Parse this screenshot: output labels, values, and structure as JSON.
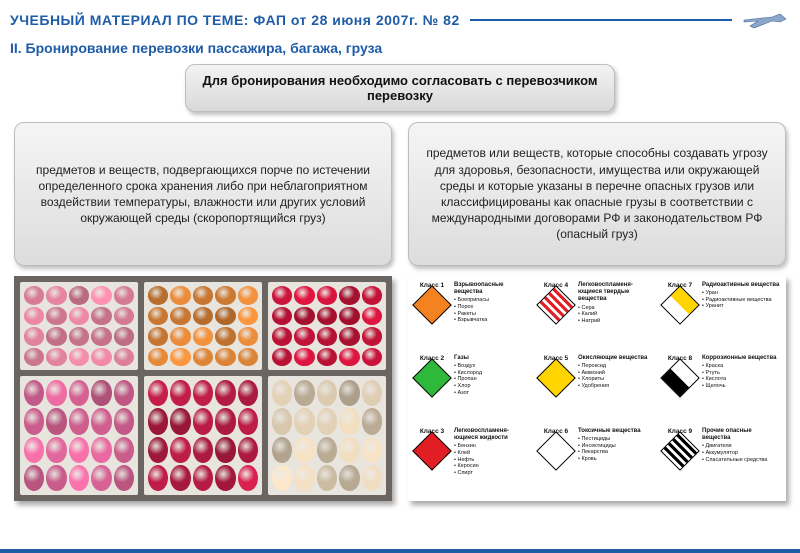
{
  "colors": {
    "accent": "#1f5ca8",
    "card_bg_top": "#f5f5f5",
    "card_bg_bottom": "#dcdcdc",
    "card_border": "#bcbcbc",
    "shadow": "rgba(0,0,0,0.25)"
  },
  "header": {
    "title": "УЧЕБНЫЙ МАТЕРИАЛ ПО ТЕМЕ: ФАП от 28 июня 2007г. № 82"
  },
  "subtitle": "II. Бронирование перевозки пассажира, багажа, груза",
  "main_note": "Для бронирования необходимо согласовать с перевозчиком перевозку",
  "left_card": "предметов и веществ, подвергающихся порче по истечении определенного срока хранения либо при неблагоприятном воздействии температуры, влажности или других условий окружающей среды (скоропортящийся груз)",
  "right_card": "предметов или веществ, которые способны создавать угрозу для здоровья, безопасности, имущества или окружающей среды и которые указаны в перечне опасных грузов или классифицированы как опасные грузы в соответствии с международными договорами РФ и законодательством РФ (опасный груз)",
  "left_image": {
    "semantic": "flower-boxes-photo",
    "boxes": [
      {
        "petal_color": "#f08aa8"
      },
      {
        "petal_color": "#e98b3a"
      },
      {
        "petal_color": "#d3143c"
      },
      {
        "petal_color": "#e86aa0"
      },
      {
        "petal_color": "#c81e4a"
      },
      {
        "petal_color": "#e6d4b8"
      }
    ]
  },
  "right_image": {
    "semantic": "hazard-class-chart",
    "classes": [
      {
        "num": "Класс 1",
        "title": "Взрывоопасные вещества",
        "color": "#f58220",
        "items": [
          "Боеприпасы",
          "Порох",
          "Ракеты",
          "Взрывчатка"
        ]
      },
      {
        "num": "Класс 2",
        "title": "Газы",
        "color": "#2fb93b",
        "items": [
          "Воздух",
          "Кислород",
          "Пропан",
          "Хлор",
          "Азот"
        ]
      },
      {
        "num": "Класс 3",
        "title": "Легковоспламеня-ющиеся жидкости",
        "color": "#e21e25",
        "items": [
          "Бензин",
          "Клей",
          "Нефть",
          "Керосин",
          "Спирт"
        ]
      },
      {
        "num": "Класс 4",
        "title": "Легковоспламеня-ющиеся твердые вещества",
        "color": "#e21e25",
        "stripe": true,
        "items": [
          "Сера",
          "Калий",
          "Натрий"
        ]
      },
      {
        "num": "Класс 5",
        "title": "Окисляющие вещества",
        "color": "#ffd400",
        "items": [
          "Пероксид",
          "Аммоний",
          "Хлориты",
          "Удобрения"
        ]
      },
      {
        "num": "Класс 6",
        "title": "Токсичные вещества",
        "color": "#ffffff",
        "items": [
          "Пестициды",
          "Инсектициды",
          "Лекарства",
          "Кровь"
        ]
      },
      {
        "num": "Класс 7",
        "title": "Радиоактивные вещества",
        "color": "#ffd400",
        "half": "#ffffff",
        "items": [
          "Уран",
          "Радиоактивные вещества",
          "Уранит"
        ]
      },
      {
        "num": "Класс 8",
        "title": "Коррозионные вещества",
        "color": "#ffffff",
        "half": "#000000",
        "items": [
          "Краска",
          "Ртуть",
          "Кислота",
          "Щелочь"
        ]
      },
      {
        "num": "Класс 9",
        "title": "Прочие опасные вещества",
        "color": "#ffffff",
        "stripe_black": true,
        "items": [
          "Двигатели",
          "Аккумулятор",
          "Спасательные средства"
        ]
      }
    ]
  }
}
